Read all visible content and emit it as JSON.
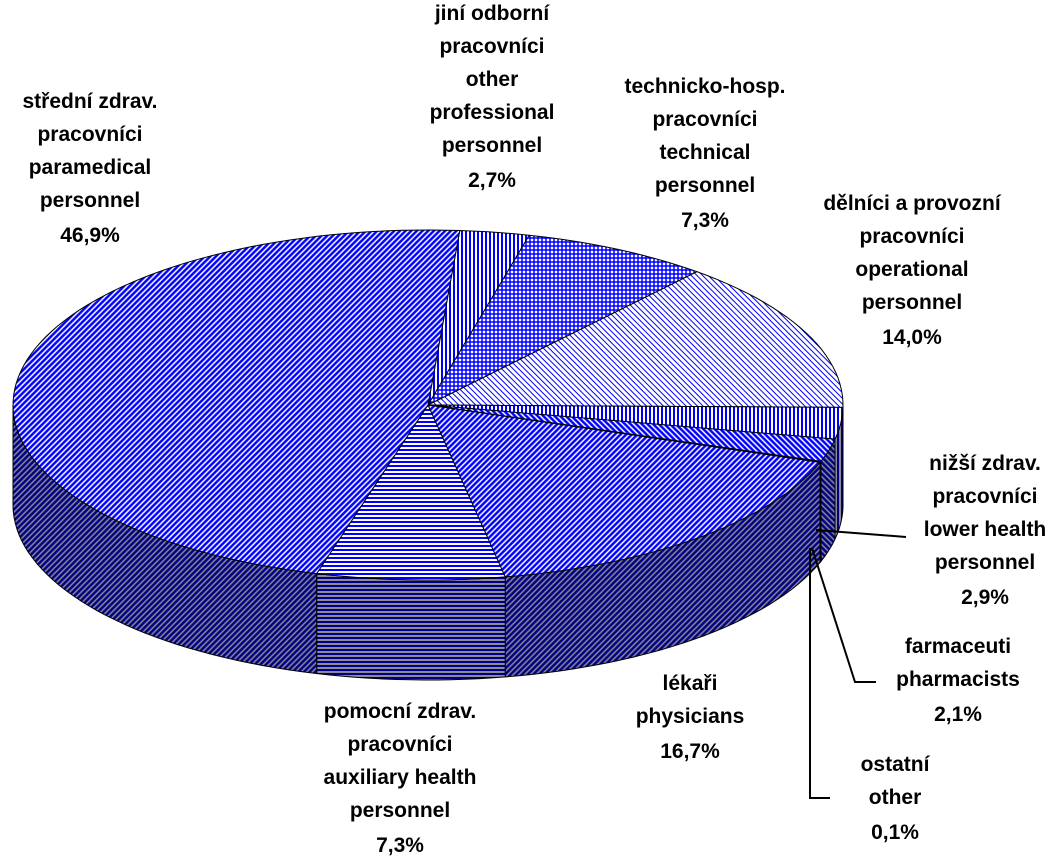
{
  "chart_data": {
    "type": "pie3d",
    "categories": [
      [
        "střední zdrav.",
        "pracovníci",
        "paramedical",
        "personnel"
      ],
      [
        "jiní odborní",
        "pracovníci",
        "other",
        "professional",
        "personnel"
      ],
      [
        "technicko-hosp.",
        "pracovníci",
        "technical",
        "personnel"
      ],
      [
        "dělníci a provozní",
        "pracovníci",
        "operational",
        "personnel"
      ],
      [
        "nižší zdrav.",
        "pracovníci",
        "lower health",
        "personnel"
      ],
      [
        "farmaceuti",
        "pharmacists"
      ],
      [
        "ostatní",
        "other"
      ],
      [
        "lékaři",
        "physicians"
      ],
      [
        "pomocní zdrav.",
        "pracovníci",
        "auxiliary health",
        "personnel"
      ]
    ],
    "values": [
      46.9,
      2.7,
      7.3,
      14.0,
      2.9,
      2.1,
      0.1,
      16.7,
      7.3
    ],
    "value_labels": [
      "46,9%",
      "2,7%",
      "7,3%",
      "14,0%",
      "2,9%",
      "2,1%",
      "0,1%",
      "16,7%",
      "7,3%"
    ],
    "color": "#0000ff",
    "patterns": [
      "diag-down",
      "vertical",
      "grid",
      "diag-fine",
      "vertical",
      "diag-up",
      "solid",
      "diag-down",
      "horizontal"
    ]
  }
}
